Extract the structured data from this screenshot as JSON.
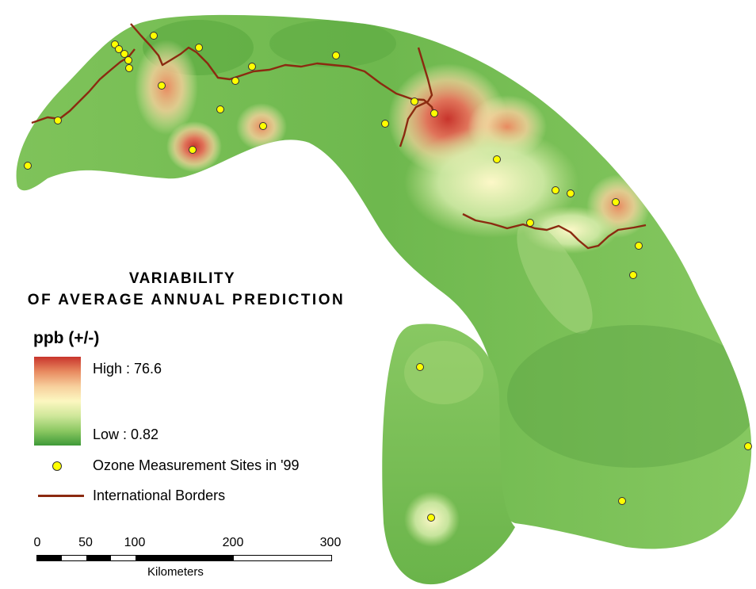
{
  "title": {
    "line1": "VARIABILITY",
    "line2": "OF AVERAGE ANNUAL PREDICTION"
  },
  "legend": {
    "heading": "ppb (+/-)",
    "high_label": "High : 76.6",
    "low_label": "Low : 0.82",
    "high_value": 76.6,
    "low_value": 0.82,
    "ramp_colors": [
      "#c8342c",
      "#e88a60",
      "#f7cf9c",
      "#fcf7c0",
      "#cfe79a",
      "#8cc862",
      "#3f9a38"
    ],
    "sites_label": "Ozone Measurement Sites in '99",
    "sites_color": "#ffff00",
    "borders_label": "International Borders",
    "borders_color": "#8b2a10"
  },
  "scale_bar": {
    "ticks": [
      "0",
      "50",
      "100",
      "200",
      "300"
    ],
    "unit": "Kilometers"
  }
}
